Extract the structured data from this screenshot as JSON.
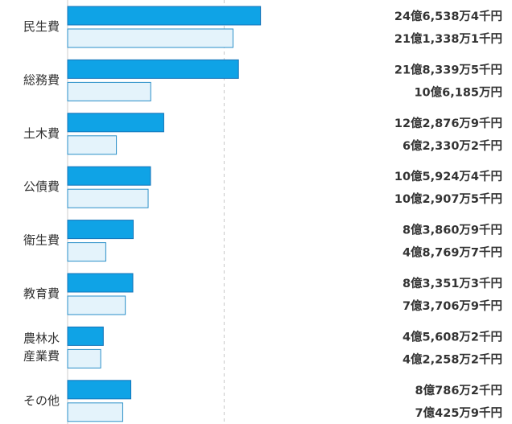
{
  "chart_data": {
    "type": "bar",
    "orientation": "horizontal",
    "categories": [
      [
        "民生費"
      ],
      [
        "総務費"
      ],
      [
        "土木費"
      ],
      [
        "公債費"
      ],
      [
        "衛生費"
      ],
      [
        "教育費"
      ],
      [
        "農林水",
        "産業費"
      ],
      [
        "その他"
      ]
    ],
    "series": [
      {
        "color": "#0fa3e6",
        "stroke": "#1473b8",
        "values": [
          246538.4,
          218339.5,
          122876.9,
          105924.4,
          83860.9,
          83351.3,
          45608.2,
          80786.2
        ],
        "labels": [
          "24億6,538万4千円",
          "21億8,339万5千円",
          "12億2,876万9千円",
          "10億5,924万4千円",
          "8億3,860万9千円",
          "8億3,351万3千円",
          "4億5,608万2千円",
          "8億786万2千円"
        ]
      },
      {
        "color": "#e4f3fb",
        "stroke": "#2a8fc8",
        "values": [
          211338.1,
          106185,
          62330.2,
          102907.5,
          48769.7,
          73706.9,
          42258.2,
          70425.9
        ],
        "labels": [
          "21億1,338万1千円",
          "10億6,185万円",
          "6億2,330万2千円",
          "10億2,907万5千円",
          "4億8,769万7千円",
          "7億3,706万9千円",
          "4億2,258万2千円",
          "7億425万9千円"
        ]
      }
    ],
    "reference_line_value": 200000,
    "grid": false,
    "legend": "none"
  }
}
